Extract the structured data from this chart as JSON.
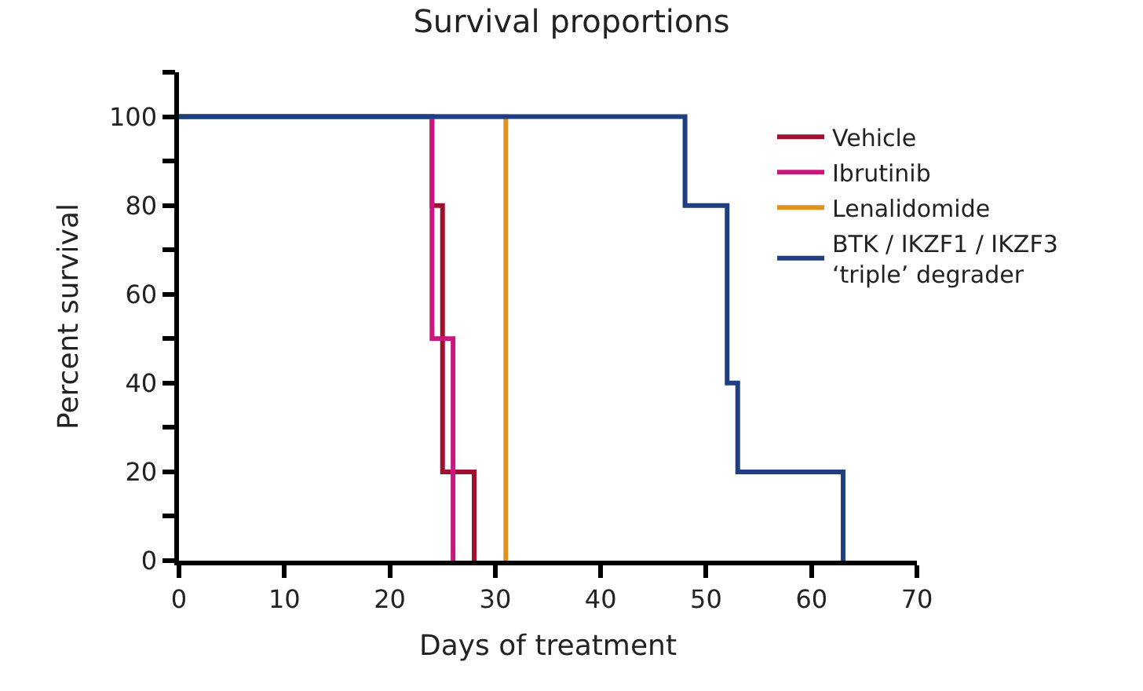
{
  "chart_data": {
    "type": "step",
    "title": "Survival proportions",
    "xlabel": "Days of treatment",
    "ylabel": "Percent survival",
    "series": [
      {
        "name": "Vehicle",
        "color": "#a0102e",
        "x": [
          0,
          24,
          25,
          28
        ],
        "values": [
          100,
          80,
          20,
          0
        ]
      },
      {
        "name": "Ibrutinib",
        "color": "#c9177e",
        "x": [
          0,
          24,
          26
        ],
        "values": [
          100,
          50,
          0
        ]
      },
      {
        "name": "Lenalidomide",
        "color": "#e0911f",
        "x": [
          0,
          31
        ],
        "values": [
          100,
          0
        ]
      },
      {
        "name": "BTK / IKZF1 / IKZF3\n‘triple’ degrader",
        "color": "#1f3f7f",
        "x": [
          0,
          48,
          52,
          53,
          63
        ],
        "values": [
          100,
          80,
          40,
          20,
          0
        ]
      }
    ],
    "xlim": [
      0,
      70
    ],
    "xticks": [
      0,
      10,
      20,
      30,
      40,
      50,
      60,
      70
    ],
    "ylim": [
      0,
      110
    ],
    "yticks": [
      0,
      {
        "value": 10,
        "label": null
      },
      20,
      {
        "value": 30,
        "label": null
      },
      40,
      {
        "value": 50,
        "label": null
      },
      60,
      {
        "value": 70,
        "label": null
      },
      80,
      {
        "value": 90,
        "label": null
      },
      100,
      {
        "value": 110,
        "label": null
      }
    ],
    "legend": "top right"
  }
}
